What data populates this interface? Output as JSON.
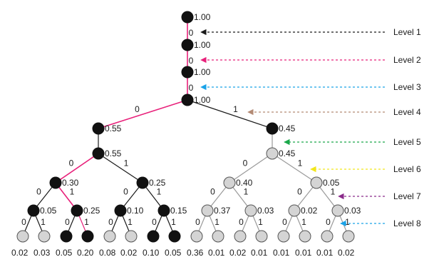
{
  "levels": [
    {
      "label": "Level 1",
      "color": "#1a1a1a"
    },
    {
      "label": "Level 2",
      "color": "#e8207a"
    },
    {
      "label": "Level 3",
      "color": "#1aa3e8"
    },
    {
      "label": "Level 4",
      "color": "#b38a74"
    },
    {
      "label": "Level 5",
      "color": "#1aa84a"
    },
    {
      "label": "Level 6",
      "color": "#f2e61a"
    },
    {
      "label": "Level 7",
      "color": "#8a2a8a"
    },
    {
      "label": "Level 8",
      "color": "#1aa3e8"
    }
  ],
  "colors": {
    "highlight_edge": "#e8207a",
    "dark_edge": "#1a1a1a",
    "light_edge": "#9a9a9a",
    "dark_node": "#111111",
    "light_node": "#d4d4d4",
    "light_node_stroke": "#555555"
  },
  "nodes": {
    "n1": {
      "prob": "1.00",
      "shade": "dark"
    },
    "n2": {
      "prob": "1.00",
      "shade": "dark"
    },
    "n3": {
      "prob": "1.00",
      "shade": "dark"
    },
    "n4": {
      "prob": "1.00",
      "shade": "dark"
    },
    "n5a": {
      "prob": "0.55",
      "shade": "dark"
    },
    "n5b": {
      "prob": "0.45",
      "shade": "dark"
    },
    "n6a": {
      "prob": "0.55",
      "shade": "dark"
    },
    "n6b": {
      "prob": "0.45",
      "shade": "light"
    },
    "n7a": {
      "prob": "0.30",
      "shade": "dark"
    },
    "n7b": {
      "prob": "0.25",
      "shade": "dark"
    },
    "n7c": {
      "prob": "0.40",
      "shade": "light"
    },
    "n7d": {
      "prob": "0.05",
      "shade": "light"
    },
    "n8a": {
      "prob": "0.05",
      "shade": "dark"
    },
    "n8b": {
      "prob": "0.25",
      "shade": "dark"
    },
    "n8c": {
      "prob": "0.10",
      "shade": "dark"
    },
    "n8d": {
      "prob": "0.15",
      "shade": "dark"
    },
    "n8e": {
      "prob": "0.37",
      "shade": "light"
    },
    "n8f": {
      "prob": "0.03",
      "shade": "light"
    },
    "n8g": {
      "prob": "0.02",
      "shade": "light"
    },
    "n8h": {
      "prob": "0.03",
      "shade": "light"
    }
  },
  "leaves": [
    {
      "prob": "0.02",
      "shade": "light"
    },
    {
      "prob": "0.03",
      "shade": "light"
    },
    {
      "prob": "0.05",
      "shade": "dark"
    },
    {
      "prob": "0.20",
      "shade": "dark"
    },
    {
      "prob": "0.08",
      "shade": "light"
    },
    {
      "prob": "0.02",
      "shade": "light"
    },
    {
      "prob": "0.10",
      "shade": "dark"
    },
    {
      "prob": "0.05",
      "shade": "dark"
    },
    {
      "prob": "0.36",
      "shade": "light"
    },
    {
      "prob": "0.01",
      "shade": "light"
    },
    {
      "prob": "0.02",
      "shade": "light"
    },
    {
      "prob": "0.01",
      "shade": "light"
    },
    {
      "prob": "0.01",
      "shade": "light"
    },
    {
      "prob": "0.01",
      "shade": "light"
    },
    {
      "prob": "0.01",
      "shade": "light"
    },
    {
      "prob": "0.02",
      "shade": "light"
    }
  ],
  "bits": {
    "zero": "0",
    "one": "1"
  }
}
